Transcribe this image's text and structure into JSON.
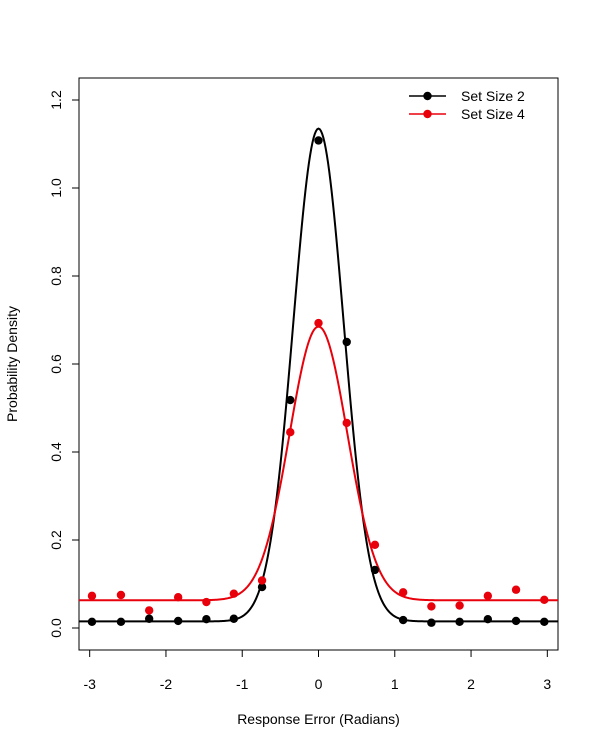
{
  "chart_data": {
    "type": "scatter",
    "title": "",
    "xlabel": "Response Error (Radians)",
    "ylabel": "Probability Density",
    "xlim": [
      -3.14,
      3.14
    ],
    "ylim": [
      -0.05,
      1.25
    ],
    "xticks": [
      -3,
      -2,
      -1,
      0,
      1,
      2,
      3
    ],
    "yticks": [
      0.0,
      0.2,
      0.4,
      0.6,
      0.8,
      1.0,
      1.2
    ],
    "xtick_labels": [
      "-3",
      "-2",
      "-1",
      "0",
      "1",
      "2",
      "3"
    ],
    "ytick_labels": [
      "0.0",
      "0.2",
      "0.4",
      "0.6",
      "0.8",
      "1.0",
      "1.2"
    ],
    "grid": false,
    "legend_position": "top-right",
    "series": [
      {
        "name": "Set Size 2",
        "color": "#000000",
        "points": [
          [
            -2.97,
            0.014
          ],
          [
            -2.59,
            0.014
          ],
          [
            -2.22,
            0.021
          ],
          [
            -1.84,
            0.016
          ],
          [
            -1.47,
            0.02
          ],
          [
            -1.11,
            0.021
          ],
          [
            -0.74,
            0.093
          ],
          [
            -0.37,
            0.518
          ],
          [
            0.0,
            1.108
          ],
          [
            0.37,
            0.65
          ],
          [
            0.74,
            0.132
          ],
          [
            1.11,
            0.018
          ],
          [
            1.48,
            0.012
          ],
          [
            1.85,
            0.014
          ],
          [
            2.22,
            0.02
          ],
          [
            2.59,
            0.016
          ],
          [
            2.96,
            0.014
          ]
        ],
        "fit": {
          "peak": 1.135,
          "base": 0.015,
          "sigma": 0.33
        }
      },
      {
        "name": "Set Size 4",
        "color": "#e8000b",
        "points": [
          [
            -2.97,
            0.073
          ],
          [
            -2.59,
            0.075
          ],
          [
            -2.22,
            0.04
          ],
          [
            -1.84,
            0.07
          ],
          [
            -1.47,
            0.059
          ],
          [
            -1.11,
            0.078
          ],
          [
            -0.74,
            0.108
          ],
          [
            -0.37,
            0.445
          ],
          [
            0.0,
            0.693
          ],
          [
            0.37,
            0.466
          ],
          [
            0.74,
            0.189
          ],
          [
            1.11,
            0.081
          ],
          [
            1.48,
            0.049
          ],
          [
            1.85,
            0.051
          ],
          [
            2.22,
            0.073
          ],
          [
            2.59,
            0.087
          ],
          [
            2.96,
            0.064
          ]
        ],
        "fit": {
          "peak": 0.685,
          "base": 0.063,
          "sigma": 0.38
        }
      }
    ]
  }
}
